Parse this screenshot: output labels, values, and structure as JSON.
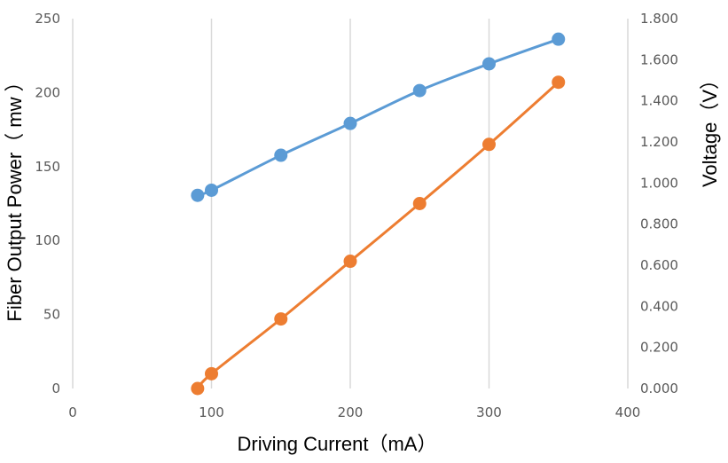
{
  "chart_data": {
    "type": "line",
    "title": "",
    "xlabel": "Driving Current（mA）",
    "ylabel": "Fiber Output Power（ mw ）",
    "y2label": "Voltage（V）",
    "xlim": [
      0,
      400
    ],
    "ylim": [
      0,
      250
    ],
    "y2lim": [
      0,
      1.8
    ],
    "x_ticks": [
      "0",
      "100",
      "200",
      "300",
      "400"
    ],
    "y_ticks": [
      "0",
      "50",
      "100",
      "150",
      "200",
      "250"
    ],
    "y2_ticks": [
      "0.000",
      "0.200",
      "0.400",
      "0.600",
      "0.800",
      "1.000",
      "1.200",
      "1.400",
      "1.600",
      "1.800"
    ],
    "grid": "vertical",
    "legend": "none",
    "series": [
      {
        "axis": "y2",
        "color": "#5B9BD5",
        "x": [
          90,
          100,
          150,
          200,
          250,
          300,
          350
        ],
        "values": [
          0.94,
          0.965,
          1.135,
          1.29,
          1.45,
          1.58,
          1.7
        ]
      },
      {
        "axis": "y",
        "color": "#ED7D31",
        "x": [
          90,
          100,
          150,
          200,
          250,
          300,
          350
        ],
        "values": [
          0,
          10,
          47,
          86,
          125,
          165,
          207
        ]
      }
    ]
  }
}
